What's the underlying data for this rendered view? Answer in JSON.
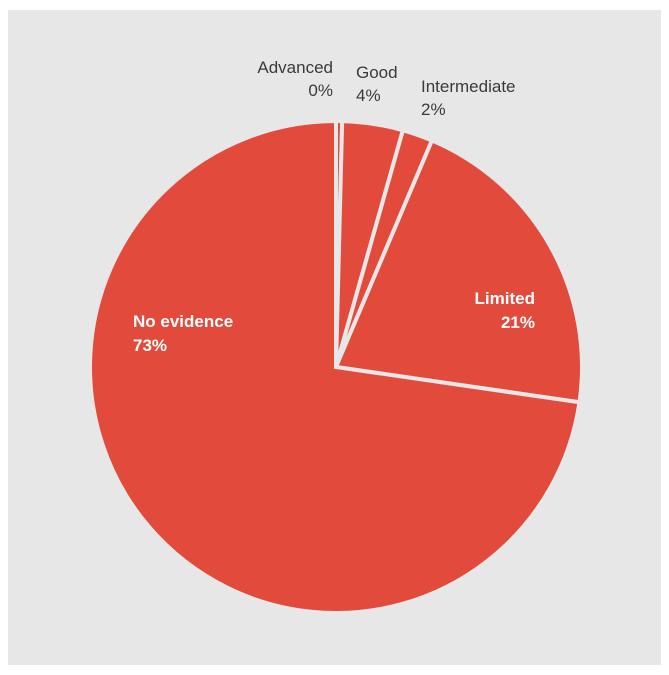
{
  "chart_data": {
    "type": "pie",
    "title": "",
    "slices": [
      {
        "label": "Advanced",
        "value": 0.4,
        "display": "0%"
      },
      {
        "label": "Good",
        "value": 4,
        "display": "4%"
      },
      {
        "label": "Intermediate",
        "value": 2,
        "display": "2%"
      },
      {
        "label": "Limited",
        "value": 21,
        "display": "21%"
      },
      {
        "label": "No evidence",
        "value": 73,
        "display": "73%"
      }
    ],
    "start_angle": "12 o'clock",
    "direction": "clockwise",
    "legend": "none",
    "colors": {
      "slice": "#e24a3b",
      "background": "#e7e7e7",
      "outside_label": "#3a3a3a",
      "inside_label": "#ffffff"
    }
  }
}
